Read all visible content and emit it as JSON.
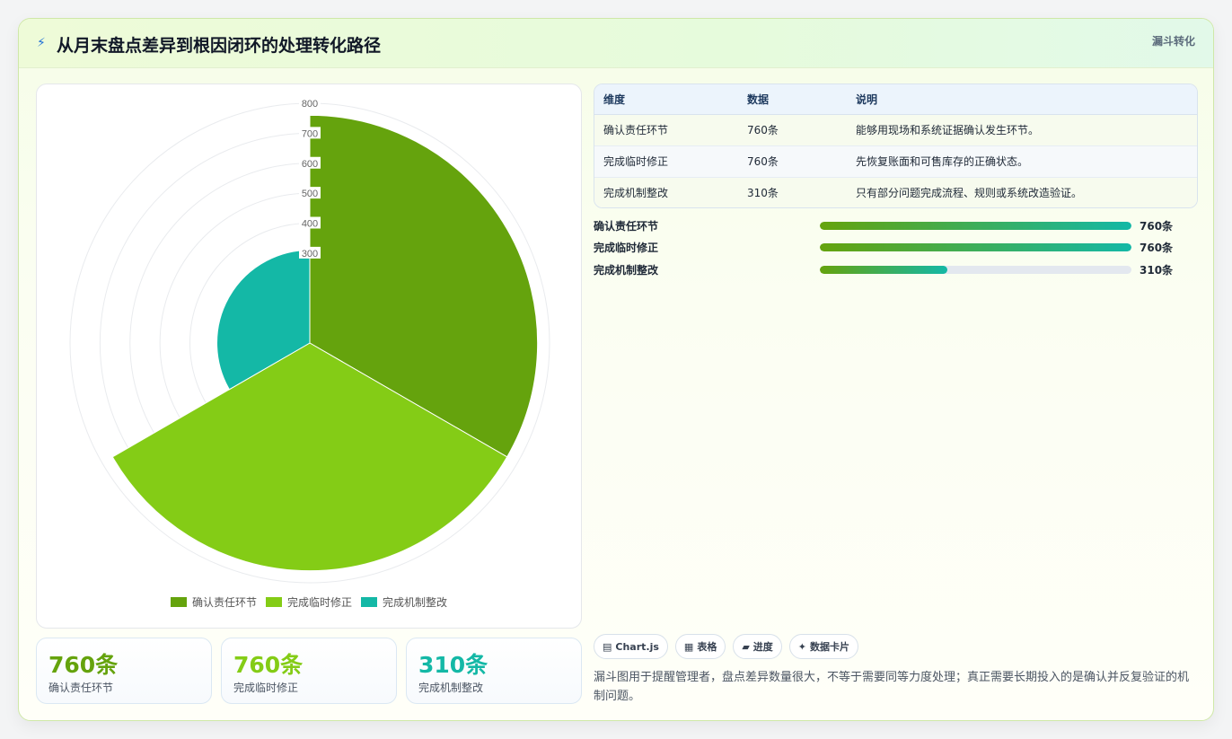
{
  "header": {
    "icon": "lightning-icon",
    "title": "从月末盘点差异到根因闭环的处理转化路径",
    "tag": "漏斗转化"
  },
  "chart_data": {
    "type": "polar-area",
    "categories": [
      "确认责任环节",
      "完成临时修正",
      "完成机制整改"
    ],
    "values": [
      760,
      760,
      310
    ],
    "colors": [
      "#65a30d",
      "#84cc16",
      "#14b8a6"
    ],
    "rlim": [
      0,
      800
    ],
    "r_ticks": [
      "800",
      "700",
      "600",
      "500",
      "400",
      "300"
    ],
    "legend_position": "bottom"
  },
  "stats": [
    {
      "value": "760条",
      "label": "确认责任环节",
      "color": "#65a30d"
    },
    {
      "value": "760条",
      "label": "完成临时修正",
      "color": "#84cc16"
    },
    {
      "value": "310条",
      "label": "完成机制整改",
      "color": "#14b8a6"
    }
  ],
  "table": {
    "headers": [
      "维度",
      "数据",
      "说明"
    ],
    "rows": [
      [
        "确认责任环节",
        "760条",
        "能够用现场和系统证据确认发生环节。"
      ],
      [
        "完成临时修正",
        "760条",
        "先恢复账面和可售库存的正确状态。"
      ],
      [
        "完成机制整改",
        "310条",
        "只有部分问题完成流程、规则或系统改造验证。"
      ]
    ]
  },
  "progress": [
    {
      "label": "确认责任环节",
      "value": "760条",
      "fraction": 1.0
    },
    {
      "label": "完成临时修正",
      "value": "760条",
      "fraction": 1.0
    },
    {
      "label": "完成机制整改",
      "value": "310条",
      "fraction": 0.408
    }
  ],
  "chips": [
    {
      "icon": "chart-icon",
      "glyph": "▤",
      "label": "Chart.js"
    },
    {
      "icon": "table-icon",
      "glyph": "▦",
      "label": "表格"
    },
    {
      "icon": "progress-icon",
      "glyph": "▰",
      "label": "进度"
    },
    {
      "icon": "card-icon",
      "glyph": "✦",
      "label": "数据卡片"
    }
  ],
  "note": "漏斗图用于提醒管理者，盘点差异数量很大，不等于需要同等力度处理；真正需要长期投入的是确认并反复验证的机制问题。"
}
